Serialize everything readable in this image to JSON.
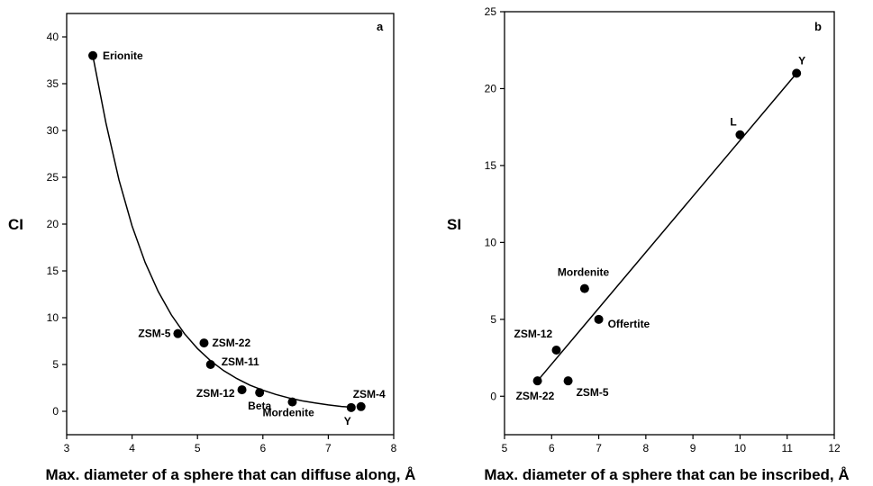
{
  "chart_data": [
    {
      "panel": "a",
      "type": "scatter",
      "xlabel": "Max. diameter of a sphere that can diffuse along, Å",
      "ylabel": "CI",
      "xlim": [
        3,
        8
      ],
      "ylim": [
        -2.5,
        42.5
      ],
      "xticks": [
        3,
        4,
        5,
        6,
        7,
        8
      ],
      "yticks": [
        0,
        5,
        10,
        15,
        20,
        25,
        30,
        35,
        40
      ],
      "grid": false,
      "points": [
        {
          "label": "Erionite",
          "x": 3.4,
          "y": 38
        },
        {
          "label": "ZSM-5",
          "x": 4.7,
          "y": 8.3
        },
        {
          "label": "ZSM-22",
          "x": 5.1,
          "y": 7.3
        },
        {
          "label": "ZSM-11",
          "x": 5.2,
          "y": 5.0
        },
        {
          "label": "ZSM-12",
          "x": 5.68,
          "y": 2.3
        },
        {
          "label": "Beta",
          "x": 5.95,
          "y": 2.0
        },
        {
          "label": "Mordenite",
          "x": 6.45,
          "y": 1.0
        },
        {
          "label": "Y",
          "x": 7.35,
          "y": 0.4
        },
        {
          "label": "ZSM-4",
          "x": 7.5,
          "y": 0.5
        }
      ],
      "fit": {
        "kind": "smooth curve",
        "x": [
          3.4,
          3.6,
          3.8,
          4.0,
          4.2,
          4.4,
          4.6,
          4.8,
          5.0,
          5.2,
          5.4,
          5.6,
          5.8,
          6.0,
          6.2,
          6.4,
          6.6,
          6.8,
          7.0,
          7.2,
          7.4
        ],
        "y": [
          38,
          30.8,
          24.7,
          19.8,
          15.9,
          12.8,
          10.3,
          8.3,
          6.7,
          5.4,
          4.35,
          3.5,
          2.8,
          2.25,
          1.8,
          1.42,
          1.12,
          0.88,
          0.68,
          0.52,
          0.4
        ]
      }
    },
    {
      "panel": "b",
      "type": "scatter",
      "xlabel": "Max. diameter of a sphere that can be inscribed, Å",
      "ylabel": "SI",
      "xlim": [
        5,
        12
      ],
      "ylim": [
        -2.5,
        25
      ],
      "xticks": [
        5,
        6,
        7,
        8,
        9,
        10,
        11,
        12
      ],
      "yticks": [
        0,
        5,
        10,
        15,
        20,
        25
      ],
      "grid": false,
      "points": [
        {
          "label": "Y",
          "x": 11.2,
          "y": 21
        },
        {
          "label": "L",
          "x": 10.0,
          "y": 17
        },
        {
          "label": "Mordenite",
          "x": 6.7,
          "y": 7
        },
        {
          "label": "Offertite",
          "x": 7.0,
          "y": 5
        },
        {
          "label": "ZSM-12",
          "x": 6.1,
          "y": 3
        },
        {
          "label": "ZSM-22",
          "x": 5.7,
          "y": 1
        },
        {
          "label": "ZSM-5",
          "x": 6.35,
          "y": 1
        }
      ],
      "fit": {
        "kind": "linear",
        "x": [
          5.7,
          11.2
        ],
        "y": [
          1.0,
          21.0
        ]
      }
    }
  ]
}
